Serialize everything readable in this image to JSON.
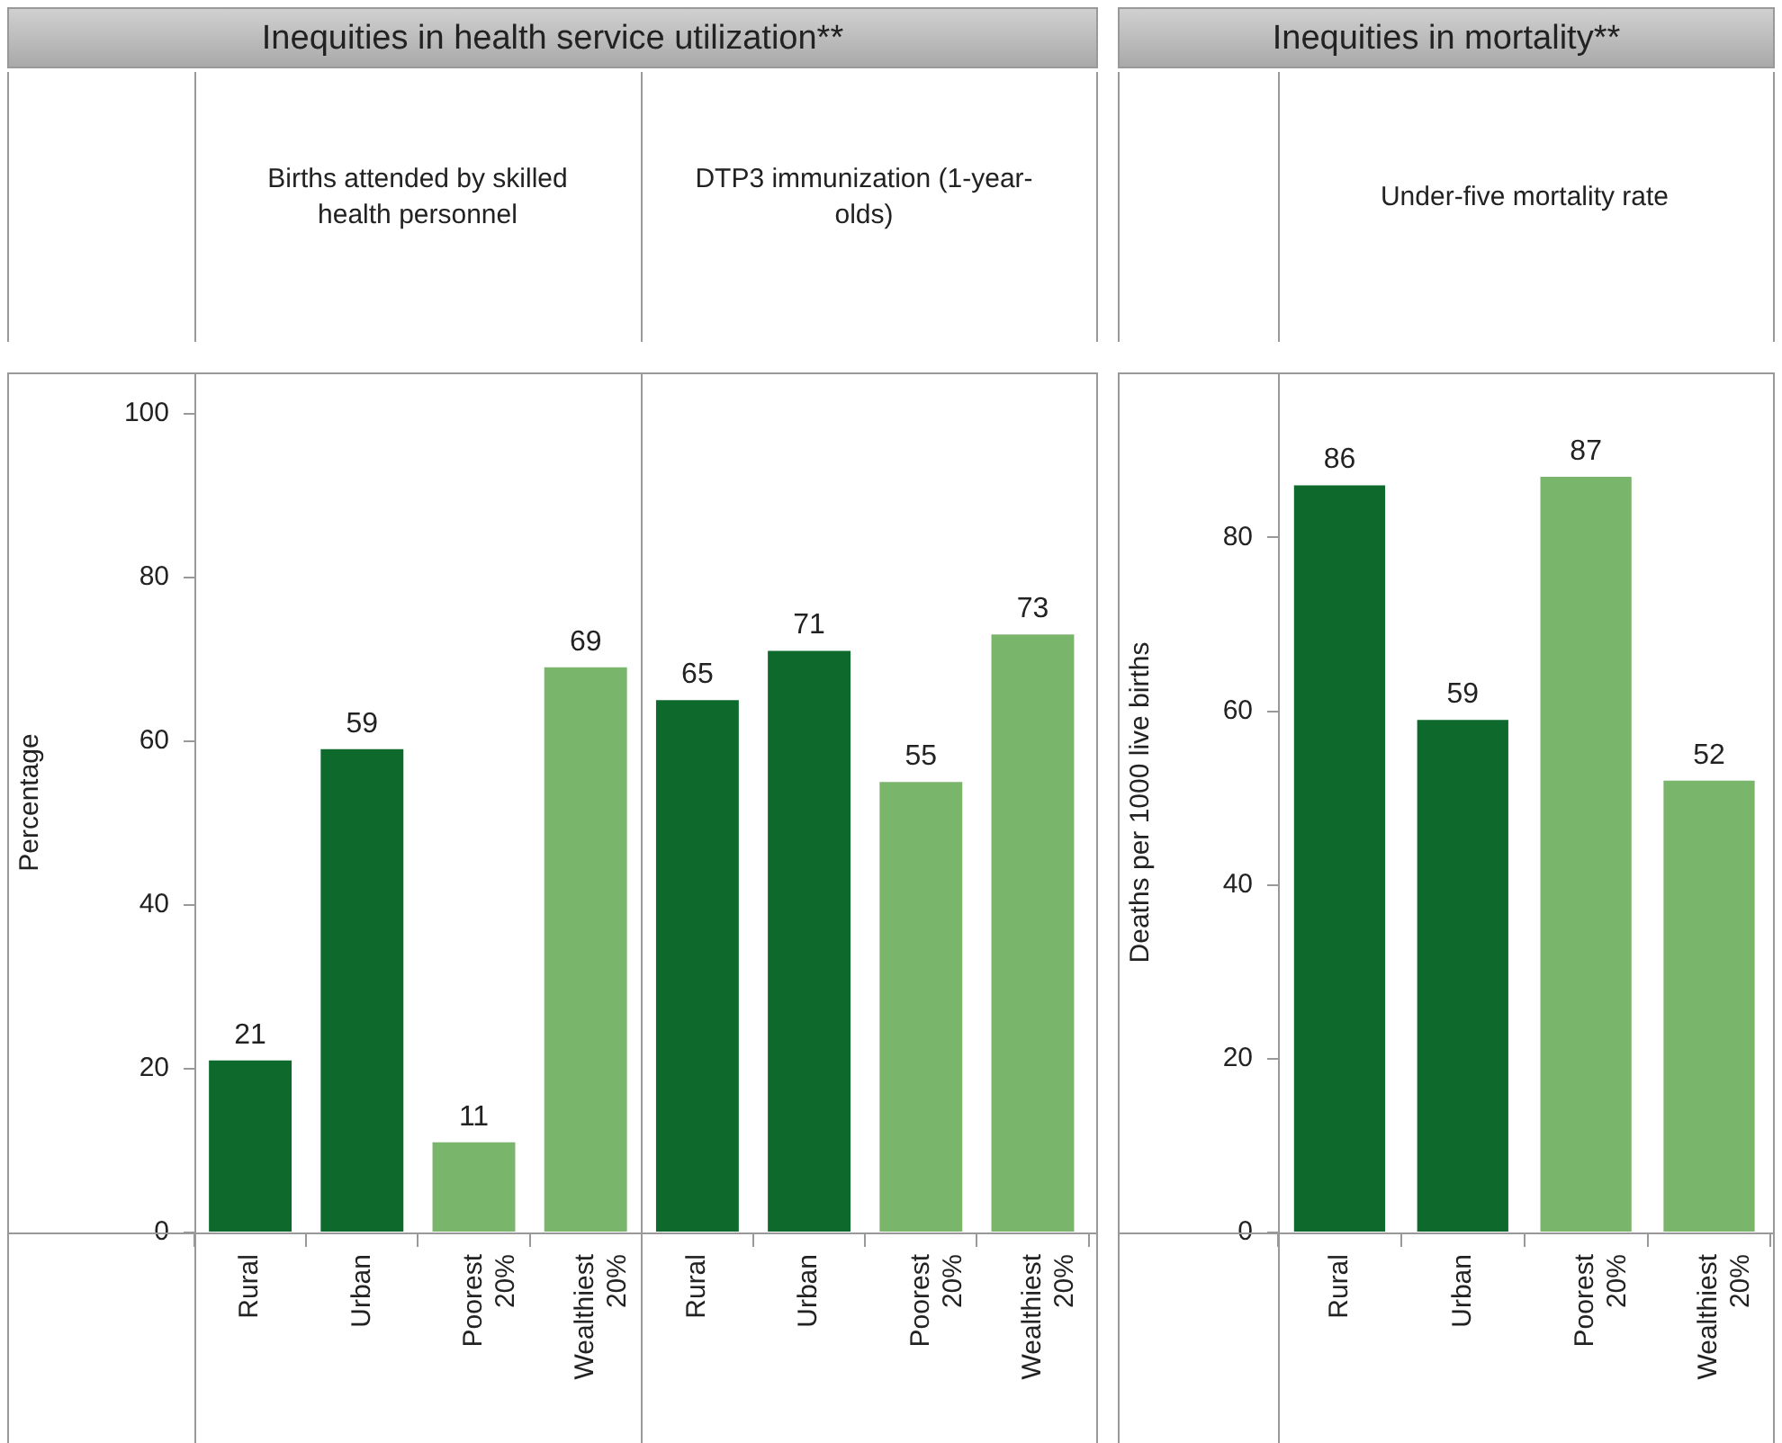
{
  "chart_data": [
    {
      "type": "bar",
      "title": "Inequities in health service utilization**",
      "ylabel": "Percentage",
      "annotations": [
        "Births attended by skilled health personnel",
        "DTP3 immunization (1-year-olds)"
      ],
      "categories": [
        "Rural",
        "Urban",
        "Poorest 20%",
        "Wealthiest 20%",
        "Rural",
        "Urban",
        "Poorest 20%",
        "Wealthiest 20%"
      ],
      "values": [
        21,
        59,
        11,
        69,
        65,
        71,
        55,
        73
      ],
      "colors": [
        "#0d6a2c",
        "#0d6a2c",
        "#7ab56c",
        "#7ab56c",
        "#0d6a2c",
        "#0d6a2c",
        "#7ab56c",
        "#7ab56c"
      ],
      "ylim": [
        0,
        105
      ],
      "yticks": [
        0,
        20,
        40,
        60,
        80,
        100
      ],
      "data_labels": true
    },
    {
      "type": "bar",
      "title": "Inequities in mortality**",
      "ylabel": "Deaths per 1000 live births",
      "annotations": [
        "Under-five mortality rate"
      ],
      "categories": [
        "Rural",
        "Urban",
        "Poorest 20%",
        "Wealthiest 20%"
      ],
      "values": [
        86,
        59,
        87,
        52
      ],
      "colors": [
        "#0d6a2c",
        "#0d6a2c",
        "#7ab56c",
        "#7ab56c"
      ],
      "ylim": [
        0,
        99
      ],
      "yticks": [
        0,
        20,
        40,
        60,
        80
      ],
      "data_labels": true
    }
  ]
}
